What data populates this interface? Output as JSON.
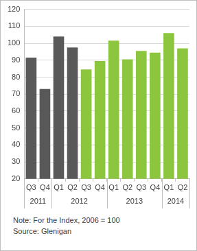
{
  "chart_data": {
    "type": "bar",
    "categories": [
      "Q3",
      "Q4",
      "Q1",
      "Q2",
      "Q3",
      "Q4",
      "Q1",
      "Q2",
      "Q3",
      "Q4",
      "Q1",
      "Q2"
    ],
    "category_groups": [
      "2011",
      "2011",
      "2012",
      "2012",
      "2012",
      "2012",
      "2013",
      "2013",
      "2013",
      "2013",
      "2014",
      "2014"
    ],
    "values": [
      91.5,
      73,
      104,
      97.5,
      84.5,
      89.5,
      101.5,
      90.5,
      95.5,
      94.5,
      106,
      97
    ],
    "colors": [
      "#595959",
      "#595959",
      "#595959",
      "#595959",
      "#8cc63f",
      "#8cc63f",
      "#8cc63f",
      "#8cc63f",
      "#8cc63f",
      "#8cc63f",
      "#8cc63f",
      "#8cc63f"
    ],
    "ylim": [
      20,
      120
    ],
    "yticks": [
      20,
      30,
      40,
      50,
      60,
      70,
      80,
      90,
      100,
      110,
      120
    ],
    "grid": true,
    "notes": [
      "Note: For the Index, 2006 = 100",
      "Source: Glenigan"
    ]
  }
}
